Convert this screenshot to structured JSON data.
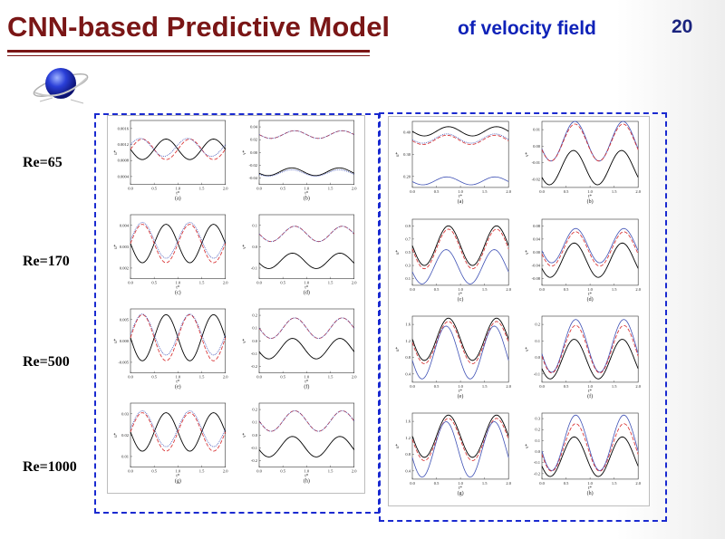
{
  "slide": {
    "title_main": "CNN-based Predictive Model",
    "title_sub": "of velocity field",
    "page_number": "20"
  },
  "re_labels": [
    "Re=65",
    "Re=170",
    "Re=500",
    "Re=1000"
  ],
  "colors": {
    "title": "#7a1616",
    "subtitle": "#0f22b8",
    "dashed_box": "#1a2ad0",
    "truth": "#000000",
    "cnn": "#d62728",
    "ref": "#3f51b5"
  },
  "axis_labels": {
    "x": "t*",
    "y_left": "u*",
    "y_right": "v*"
  },
  "x_ticks": [
    "0.0",
    "0.5",
    "1.0",
    "1.5",
    "2.0"
  ],
  "left_figure": {
    "panels": [
      {
        "id": "a",
        "y_ticks": [
          "0.0016",
          "0.0012",
          "0.0008",
          "0.0004"
        ]
      },
      {
        "id": "b",
        "y_ticks": [
          "0.04",
          "0.02",
          "0.00",
          "-0.02",
          "-0.04"
        ]
      },
      {
        "id": "c",
        "y_ticks": [
          "0.004",
          "0.003",
          "0.002"
        ]
      },
      {
        "id": "d",
        "y_ticks": [
          "0.1",
          "0.0",
          "-0.1"
        ]
      },
      {
        "id": "e",
        "y_ticks": [
          "0.005",
          "0.000",
          "-0.005"
        ]
      },
      {
        "id": "f",
        "y_ticks": [
          "0.2",
          "0.1",
          "0.0",
          "-0.1",
          "-0.2"
        ]
      },
      {
        "id": "g",
        "y_ticks": [
          "0.03",
          "0.02",
          "0.01"
        ]
      },
      {
        "id": "h",
        "y_ticks": [
          "0.2",
          "0.1",
          "0.0",
          "-0.1",
          "-0.2"
        ]
      }
    ]
  },
  "right_figure": {
    "panels": [
      {
        "id": "a",
        "y_ticks": [
          "0.40",
          "0.30",
          "0.20"
        ]
      },
      {
        "id": "b",
        "y_ticks": [
          "0.01",
          "0.00",
          "-0.01",
          "-0.02"
        ]
      },
      {
        "id": "c",
        "y_ticks": [
          "0.9",
          "0.7",
          "0.5",
          "0.3",
          "0.1"
        ]
      },
      {
        "id": "d",
        "y_ticks": [
          "0.08",
          "0.04",
          "0.00",
          "-0.04",
          "-0.08"
        ]
      },
      {
        "id": "e",
        "y_ticks": [
          "1.6",
          "1.2",
          "0.8",
          "0.4"
        ]
      },
      {
        "id": "f",
        "y_ticks": [
          "0.2",
          "0.1",
          "0.0",
          "-0.1"
        ]
      },
      {
        "id": "g",
        "y_ticks": [
          "1.6",
          "1.2",
          "0.8",
          "0.4"
        ]
      },
      {
        "id": "h",
        "y_ticks": [
          "0.3",
          "0.2",
          "0.1",
          "0.0",
          "-0.1",
          "-0.2"
        ]
      }
    ]
  }
}
